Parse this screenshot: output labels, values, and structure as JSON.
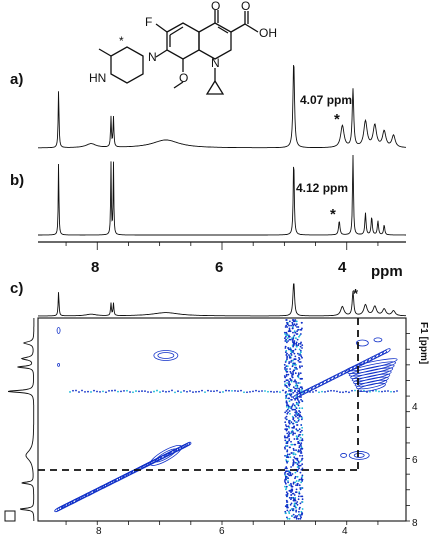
{
  "panels": {
    "a": {
      "label": "a)",
      "annotation": "4.07 ppm",
      "marker": "*"
    },
    "b": {
      "label": "b)",
      "annotation": "4.12 ppm",
      "marker": "*"
    },
    "c": {
      "label": "c)",
      "marker": "*"
    }
  },
  "axis_1d": {
    "unit": "ppm",
    "ticks": [
      "8",
      "6",
      "4"
    ]
  },
  "axis_2d": {
    "f2_ticks": [
      "8",
      "6",
      "4"
    ],
    "f1_title": "F1 [ppm]",
    "f1_ticks": [
      "4",
      "6",
      "8"
    ]
  },
  "structure": {
    "atoms": {
      "O_carbonyl": "O",
      "O_acid": "O",
      "OH": "OH",
      "F": "F",
      "N_ring": "N",
      "N_pip": "N",
      "NH": "HN",
      "O_methoxy": "O",
      "star": "*"
    }
  },
  "colors": {
    "spectrum": "#111111",
    "contour_main": "#1030c8",
    "contour_accent": "#19b9d6",
    "dashed": "#111111"
  },
  "chart_data": [
    {
      "type": "line",
      "name": "a",
      "x_unit": "ppm",
      "xlim": [
        9.0,
        3.0
      ],
      "peaks_ppm": [
        8.62,
        8.1,
        7.78,
        7.74,
        6.9,
        4.85,
        4.07,
        3.9,
        3.7,
        3.55,
        3.4,
        3.25
      ],
      "annotation": "4.07 ppm"
    },
    {
      "type": "line",
      "name": "b",
      "x_unit": "ppm",
      "xlim": [
        9.0,
        3.0
      ],
      "peaks_ppm": [
        8.62,
        7.78,
        7.74,
        4.85,
        4.12,
        3.9,
        3.7,
        3.6,
        3.5,
        3.4
      ],
      "annotation": "4.12 ppm"
    },
    {
      "type": "heatmap",
      "name": "c",
      "x_unit": "ppm",
      "y_unit": "ppm",
      "xlim": [
        9.0,
        3.0
      ],
      "ylim": [
        2.5,
        9.0
      ],
      "diagonal_peaks_ppm": [
        8.62,
        7.78,
        6.9,
        4.85,
        4.07,
        3.9,
        3.4
      ],
      "cross_peaks_ppm": [
        [
          6.9,
          3.7
        ],
        [
          4.05,
          6.9
        ],
        [
          3.8,
          6.9
        ],
        [
          3.6,
          3.4
        ],
        [
          3.5,
          3.8
        ]
      ],
      "dashed_guides_ppm": {
        "x": 4.07,
        "y": 6.9
      }
    }
  ]
}
